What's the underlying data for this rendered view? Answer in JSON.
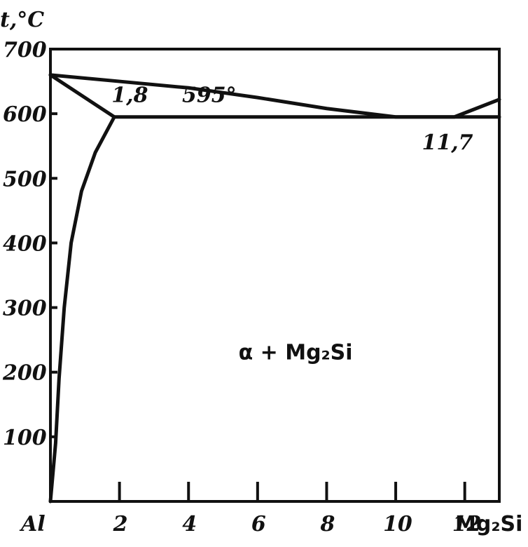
{
  "chart_data": {
    "type": "line",
    "title": "",
    "ylabel": "t,°C",
    "xlabel": "",
    "xlim": [
      0,
      13
    ],
    "ylim": [
      0,
      700
    ],
    "x_tick_labels": [
      {
        "x": 0,
        "label": "Al"
      },
      {
        "x": 2,
        "label": "2"
      },
      {
        "x": 4,
        "label": "4"
      },
      {
        "x": 6,
        "label": "6"
      },
      {
        "x": 8,
        "label": "8"
      },
      {
        "x": 10,
        "label": "10"
      },
      {
        "x": 12,
        "label": "12"
      }
    ],
    "x_end_label": "Mg₂Si",
    "y_ticks": [
      100,
      200,
      300,
      400,
      500,
      600,
      700
    ],
    "series": [
      {
        "values": [
          [
            0,
            660
          ],
          [
            2,
            650
          ],
          [
            4,
            640
          ],
          [
            6,
            625
          ],
          [
            8,
            608
          ],
          [
            10,
            595
          ],
          [
            11.7,
            595
          ],
          [
            13,
            622
          ]
        ]
      },
      {
        "values": [
          [
            0,
            660
          ],
          [
            1.85,
            595
          ]
        ]
      },
      {
        "values": [
          [
            1.85,
            595
          ],
          [
            13,
            595
          ]
        ]
      },
      {
        "values": [
          [
            0,
            0
          ],
          [
            0.15,
            90
          ],
          [
            0.25,
            190
          ],
          [
            0.4,
            300
          ],
          [
            0.6,
            400
          ],
          [
            0.9,
            480
          ],
          [
            1.3,
            540
          ],
          [
            1.85,
            595
          ]
        ]
      }
    ],
    "annotations": [
      {
        "text": "1,8",
        "x": 2.3,
        "y": 618
      },
      {
        "text": "595°",
        "x": 4.6,
        "y": 618
      },
      {
        "text": "11,7",
        "x": 11.5,
        "y": 545
      },
      {
        "text": "α + Mg₂Si",
        "x": 7.1,
        "y": 220
      }
    ]
  }
}
